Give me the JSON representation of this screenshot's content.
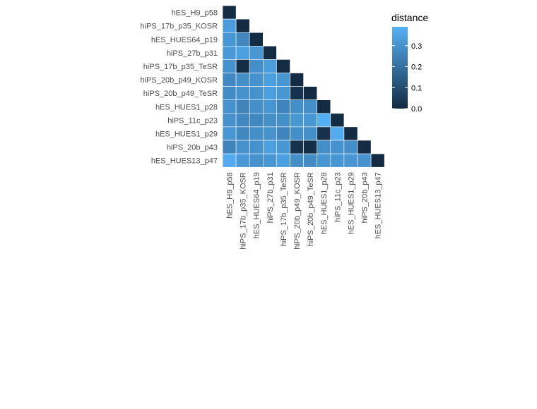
{
  "chart_data": {
    "type": "heatmap",
    "title": "",
    "xlabel": "",
    "ylabel": "",
    "categories": [
      "hES_H9_p58",
      "hiPS_17b_p35_KOSR",
      "hES_HUES64_p19",
      "hiPS_27b_p31",
      "hiPS_17b_p35_TeSR",
      "hiPS_20b_p49_KOSR",
      "hiPS_20b_p49_TeSR",
      "hES_HUES1_p28",
      "hiPS_11c_p23",
      "hES_HUES1_p29",
      "hiPS_20b_p43",
      "hES_HUES13_p47"
    ],
    "values": [
      [
        0.0
      ],
      [
        0.33,
        0.0
      ],
      [
        0.31,
        0.27,
        0.0
      ],
      [
        0.32,
        0.34,
        0.31,
        0.0
      ],
      [
        0.3,
        0.01,
        0.29,
        0.33,
        0.0
      ],
      [
        0.27,
        0.29,
        0.3,
        0.34,
        0.31,
        0.0
      ],
      [
        0.28,
        0.3,
        0.3,
        0.34,
        0.31,
        0.02,
        0.0
      ],
      [
        0.3,
        0.26,
        0.29,
        0.31,
        0.26,
        0.29,
        0.29,
        0.0
      ],
      [
        0.3,
        0.27,
        0.27,
        0.29,
        0.29,
        0.31,
        0.31,
        0.38,
        0.0
      ],
      [
        0.31,
        0.27,
        0.29,
        0.3,
        0.26,
        0.29,
        0.29,
        0.02,
        0.37,
        0.0
      ],
      [
        0.26,
        0.3,
        0.3,
        0.34,
        0.31,
        0.02,
        0.01,
        0.29,
        0.3,
        0.29,
        0.0
      ],
      [
        0.37,
        0.32,
        0.3,
        0.31,
        0.34,
        0.29,
        0.28,
        0.31,
        0.31,
        0.31,
        0.3,
        0.0
      ]
    ],
    "legend": {
      "title": "distance",
      "position": "top-right",
      "ticks": [
        0.0,
        0.1,
        0.2,
        0.3
      ],
      "tick_labels": [
        "0.0",
        "0.1",
        "0.2",
        "0.3"
      ],
      "min": 0.0,
      "max": 0.39
    },
    "colors": {
      "low": "#132B43",
      "high": "#56B1F7",
      "grid": "#ffffff"
    },
    "grid": false
  }
}
